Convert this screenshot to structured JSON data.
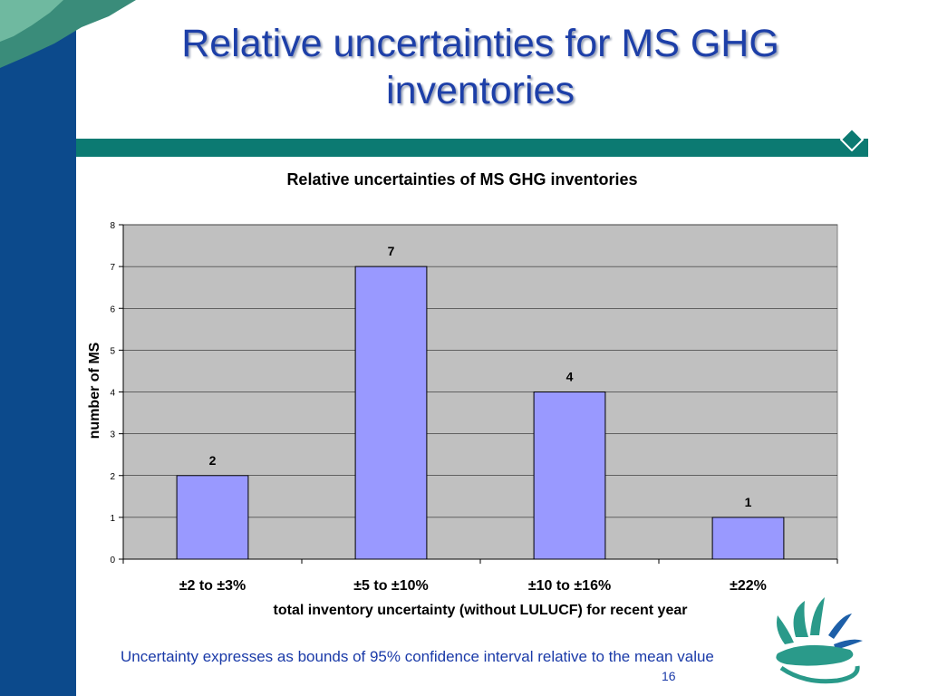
{
  "slide": {
    "title_line1": "Relative uncertainties for MS GHG",
    "title_line2": "inventories",
    "footnote": "Uncertainty expresses as bounds of 95% confidence interval relative to the mean value",
    "page_number": "16",
    "colors": {
      "left_band": "#0c4a8c",
      "title_bar": "#0c7a72",
      "title_text": "#1d3fa8"
    }
  },
  "chart_data": {
    "type": "bar",
    "title": "Relative uncertainties of MS GHG inventories",
    "xlabel": "total inventory uncertainty (without LULUCF) for recent year",
    "ylabel": "number of MS",
    "categories": [
      "±2 to ±3%",
      "±5 to ±10%",
      "±10 to ±16%",
      "±22%"
    ],
    "values": [
      2,
      7,
      4,
      1
    ],
    "data_labels": [
      "2",
      "7",
      "4",
      "1"
    ],
    "ylim": [
      0,
      8
    ],
    "yticks": [
      0,
      1,
      2,
      3,
      4,
      5,
      6,
      7,
      8
    ],
    "grid": true,
    "legend": "none",
    "colors": {
      "bar": "#9999ff",
      "plot_background": "#c0c0c0"
    }
  }
}
